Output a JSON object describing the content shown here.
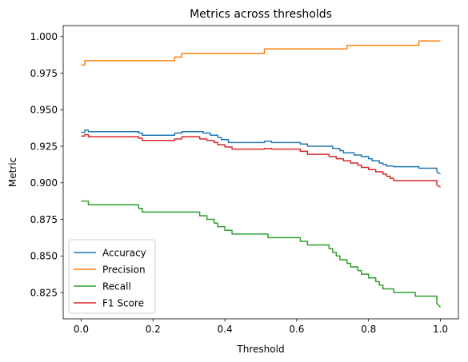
{
  "chart_data": {
    "type": "line",
    "title": "Metrics across thresholds",
    "xlabel": "Threshold",
    "ylabel": "Metric",
    "xlim": [
      -0.05,
      1.05
    ],
    "ylim": [
      0.807,
      1.0075
    ],
    "xticks": [
      0.0,
      0.2,
      0.4,
      0.6,
      0.8,
      1.0
    ],
    "xtick_labels": [
      "0.0",
      "0.2",
      "0.4",
      "0.6",
      "0.8",
      "1.0"
    ],
    "yticks": [
      0.825,
      0.85,
      0.875,
      0.9,
      0.925,
      0.95,
      0.975,
      1.0
    ],
    "ytick_labels": [
      "0.825",
      "0.850",
      "0.875",
      "0.900",
      "0.925",
      "0.950",
      "0.975",
      "1.000"
    ],
    "grid": false,
    "legend_position": "lower-left",
    "colors": {
      "accuracy": "#1f77b4",
      "precision": "#ff7f0e",
      "recall": "#2ca02c",
      "f1": "#d62728"
    },
    "series": [
      {
        "name": "Accuracy",
        "color": "#1f77b4",
        "x": [
          0.0,
          0.01,
          0.01,
          0.02,
          0.02,
          0.16,
          0.16,
          0.17,
          0.17,
          0.26,
          0.26,
          0.28,
          0.28,
          0.34,
          0.34,
          0.36,
          0.36,
          0.38,
          0.38,
          0.39,
          0.39,
          0.41,
          0.41,
          0.44,
          0.44,
          0.51,
          0.51,
          0.53,
          0.53,
          0.61,
          0.61,
          0.63,
          0.63,
          0.7,
          0.7,
          0.72,
          0.72,
          0.73,
          0.73,
          0.74,
          0.74,
          0.76,
          0.76,
          0.78,
          0.78,
          0.8,
          0.8,
          0.81,
          0.81,
          0.83,
          0.83,
          0.84,
          0.84,
          0.85,
          0.85,
          0.87,
          0.87,
          0.88,
          0.88,
          0.94,
          0.94,
          0.95,
          0.95,
          0.99,
          0.99,
          1.0
        ],
        "y": [
          0.9345,
          0.9345,
          0.936,
          0.936,
          0.935,
          0.935,
          0.934,
          0.934,
          0.9325,
          0.9325,
          0.934,
          0.934,
          0.935,
          0.935,
          0.934,
          0.934,
          0.9325,
          0.9325,
          0.931,
          0.931,
          0.9295,
          0.9295,
          0.9275,
          0.9275,
          0.9275,
          0.9275,
          0.9285,
          0.9285,
          0.9275,
          0.9275,
          0.9265,
          0.9265,
          0.925,
          0.925,
          0.9235,
          0.9235,
          0.922,
          0.922,
          0.9205,
          0.9205,
          0.9205,
          0.9205,
          0.919,
          0.919,
          0.918,
          0.918,
          0.9165,
          0.9165,
          0.915,
          0.915,
          0.9135,
          0.9135,
          0.9125,
          0.9125,
          0.9115,
          0.9115,
          0.911,
          0.911,
          0.911,
          0.911,
          0.91,
          0.91,
          0.91,
          0.91,
          0.9075,
          0.906
        ]
      },
      {
        "name": "Precision",
        "color": "#ff7f0e",
        "x": [
          0.0,
          0.01,
          0.01,
          0.26,
          0.26,
          0.28,
          0.28,
          0.51,
          0.51,
          0.74,
          0.74,
          0.94,
          0.94,
          1.0
        ],
        "y": [
          0.9805,
          0.9805,
          0.9835,
          0.9835,
          0.986,
          0.986,
          0.9885,
          0.9885,
          0.9915,
          0.9915,
          0.994,
          0.994,
          0.997,
          0.997
        ]
      },
      {
        "name": "Recall",
        "color": "#2ca02c",
        "x": [
          0.0,
          0.02,
          0.02,
          0.16,
          0.16,
          0.17,
          0.17,
          0.33,
          0.33,
          0.35,
          0.35,
          0.37,
          0.37,
          0.38,
          0.38,
          0.4,
          0.4,
          0.42,
          0.42,
          0.44,
          0.44,
          0.52,
          0.52,
          0.61,
          0.61,
          0.63,
          0.63,
          0.69,
          0.69,
          0.7,
          0.7,
          0.71,
          0.71,
          0.72,
          0.72,
          0.74,
          0.74,
          0.75,
          0.75,
          0.77,
          0.77,
          0.78,
          0.78,
          0.8,
          0.8,
          0.82,
          0.82,
          0.83,
          0.83,
          0.84,
          0.84,
          0.85,
          0.85,
          0.86,
          0.86,
          0.87,
          0.87,
          0.93,
          0.93,
          0.95,
          0.95,
          0.99,
          0.99,
          1.0
        ],
        "y": [
          0.8875,
          0.8875,
          0.885,
          0.885,
          0.8825,
          0.8825,
          0.88,
          0.88,
          0.8775,
          0.8775,
          0.875,
          0.875,
          0.8725,
          0.8725,
          0.87,
          0.87,
          0.8675,
          0.8675,
          0.865,
          0.865,
          0.865,
          0.865,
          0.8625,
          0.8625,
          0.86,
          0.86,
          0.8575,
          0.8575,
          0.855,
          0.855,
          0.8525,
          0.8525,
          0.85,
          0.85,
          0.8475,
          0.8475,
          0.845,
          0.845,
          0.8425,
          0.8425,
          0.84,
          0.84,
          0.8375,
          0.8375,
          0.835,
          0.835,
          0.8325,
          0.8325,
          0.83,
          0.83,
          0.8275,
          0.8275,
          0.8275,
          0.8275,
          0.8275,
          0.8275,
          0.825,
          0.825,
          0.8225,
          0.8225,
          0.8225,
          0.8225,
          0.8175,
          0.815
        ]
      },
      {
        "name": "F1 Score",
        "color": "#d62728",
        "x": [
          0.0,
          0.01,
          0.01,
          0.02,
          0.02,
          0.16,
          0.16,
          0.17,
          0.17,
          0.26,
          0.26,
          0.28,
          0.28,
          0.33,
          0.33,
          0.35,
          0.35,
          0.37,
          0.37,
          0.38,
          0.38,
          0.4,
          0.4,
          0.42,
          0.42,
          0.44,
          0.44,
          0.51,
          0.51,
          0.53,
          0.53,
          0.61,
          0.61,
          0.63,
          0.63,
          0.69,
          0.69,
          0.71,
          0.71,
          0.73,
          0.73,
          0.75,
          0.75,
          0.77,
          0.77,
          0.78,
          0.78,
          0.8,
          0.8,
          0.82,
          0.82,
          0.84,
          0.84,
          0.85,
          0.85,
          0.86,
          0.86,
          0.87,
          0.87,
          0.93,
          0.93,
          0.95,
          0.95,
          0.99,
          0.99,
          1.0
        ],
        "y": [
          0.932,
          0.932,
          0.933,
          0.933,
          0.9315,
          0.9315,
          0.9305,
          0.9305,
          0.929,
          0.929,
          0.93,
          0.93,
          0.9315,
          0.9315,
          0.93,
          0.93,
          0.929,
          0.929,
          0.9275,
          0.9275,
          0.926,
          0.926,
          0.9245,
          0.9245,
          0.923,
          0.923,
          0.923,
          0.923,
          0.9235,
          0.9235,
          0.923,
          0.923,
          0.9215,
          0.9215,
          0.9195,
          0.9195,
          0.918,
          0.918,
          0.9165,
          0.9165,
          0.915,
          0.915,
          0.9135,
          0.9135,
          0.912,
          0.912,
          0.9105,
          0.9105,
          0.909,
          0.909,
          0.9075,
          0.9075,
          0.906,
          0.906,
          0.9045,
          0.9045,
          0.903,
          0.903,
          0.9015,
          0.9015,
          0.9015,
          0.9015,
          0.9015,
          0.9015,
          0.8985,
          0.897
        ]
      }
    ]
  }
}
